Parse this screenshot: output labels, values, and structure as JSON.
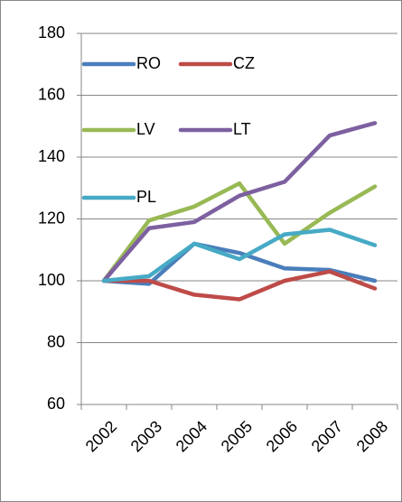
{
  "chart_data": {
    "type": "line",
    "categories": [
      "2002",
      "2003",
      "2004",
      "2005",
      "2006",
      "2007",
      "2008"
    ],
    "series": [
      {
        "name": "RO",
        "color": "#4a7ebb",
        "values": [
          100,
          99,
          112,
          109,
          104,
          103.5,
          100
        ]
      },
      {
        "name": "CZ",
        "color": "#be4b48",
        "values": [
          100,
          100,
          95.5,
          94,
          100,
          103,
          97.5
        ]
      },
      {
        "name": "LV",
        "color": "#98b954",
        "values": [
          100,
          119.5,
          124,
          131.5,
          112,
          122,
          130.5
        ]
      },
      {
        "name": "LT",
        "color": "#7d60a0",
        "values": [
          100,
          117,
          119,
          127.5,
          132,
          147,
          151
        ]
      },
      {
        "name": "PL",
        "color": "#46aac5",
        "values": [
          100,
          101.5,
          112,
          107,
          115,
          116.5,
          111.5
        ]
      }
    ],
    "ylim": [
      60,
      180
    ],
    "yticks": [
      60,
      80,
      100,
      120,
      140,
      160,
      180
    ],
    "grid": true
  }
}
